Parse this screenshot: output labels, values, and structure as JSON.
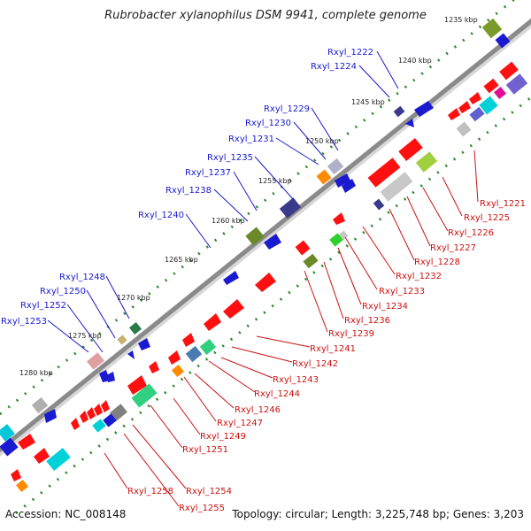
{
  "title": "Rubrobacter xylanophilus DSM 9941, complete genome",
  "accession": "Accession: NC_008148",
  "summary": "Topology: circular; Length: 3,225,748 bp; Genes: 3,203",
  "colors": {
    "backbone": "#8a8a8a",
    "tick": "#2c8a2c",
    "label_upper": "#1a1ad0",
    "label_lower": "#cc1111"
  },
  "kbp_labels": [
    "1235 kbp",
    "1240 kbp",
    "1245 kbp",
    "1250 kbp",
    "1255 kbp",
    "1260 kbp",
    "1265 kbp",
    "1270 kbp",
    "1275 kbp",
    "1280 kbp"
  ],
  "upper_gene_labels": [
    "Rxyl_1222",
    "Rxyl_1224",
    "Rxyl_1229",
    "Rxyl_1230",
    "Rxyl_1231",
    "Rxyl_1235",
    "Rxyl_1237",
    "Rxyl_1238",
    "Rxyl_1240",
    "Rxyl_1248",
    "Rxyl_1250",
    "Rxyl_1252",
    "Rxyl_1253"
  ],
  "lower_gene_labels": [
    "Rxyl_1221",
    "Rxyl_1225",
    "Rxyl_1226",
    "Rxyl_1227",
    "Rxyl_1228",
    "Rxyl_1232",
    "Rxyl_1233",
    "Rxyl_1234",
    "Rxyl_1236",
    "Rxyl_1239",
    "Rxyl_1241",
    "Rxyl_1242",
    "Rxyl_1243",
    "Rxyl_1244",
    "Rxyl_1246",
    "Rxyl_1247",
    "Rxyl_1249",
    "Rxyl_1251",
    "Rxyl_1254",
    "Rxyl_1258",
    "Rxyl_1255"
  ]
}
